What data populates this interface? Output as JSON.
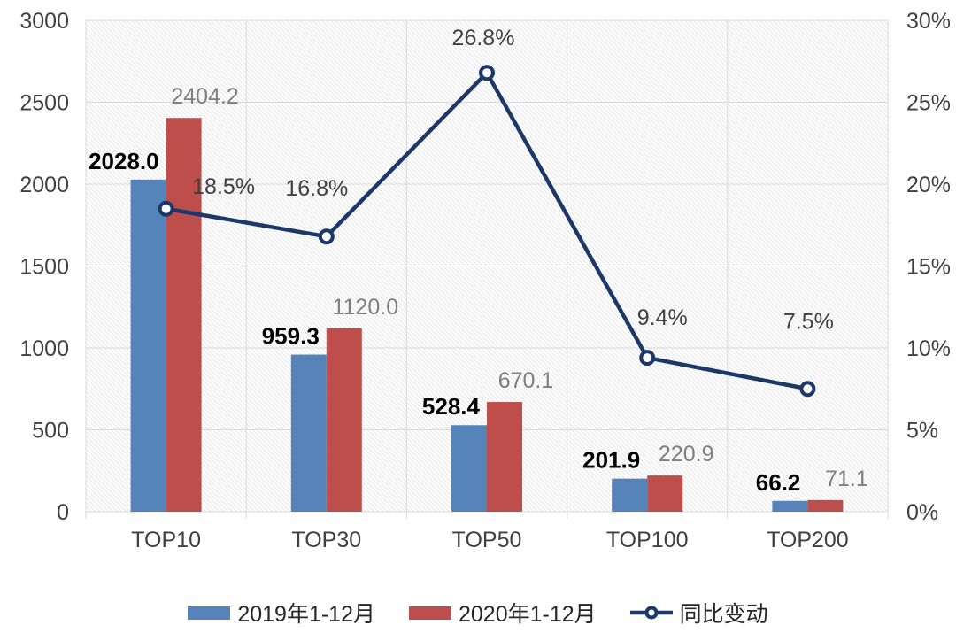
{
  "chart_data": {
    "type": "combo-bar-line",
    "categories": [
      "TOP10",
      "TOP30",
      "TOP50",
      "TOP100",
      "TOP200"
    ],
    "bar_series": [
      {
        "name": "2019年1-12月",
        "color": "#5583BA",
        "values": [
          2028.0,
          959.3,
          528.4,
          201.9,
          66.2
        ],
        "labels": [
          "2028.0",
          "959.3",
          "528.4",
          "201.9",
          "66.2"
        ]
      },
      {
        "name": "2020年1-12月",
        "color": "#BE4E4C",
        "values": [
          2404.2,
          1120.0,
          670.1,
          220.9,
          71.1
        ],
        "labels": [
          "2404.2",
          "1120.0",
          "670.1",
          "220.9",
          "71.1"
        ]
      }
    ],
    "line_series": {
      "name": "同比变动",
      "color": "#1B3869",
      "values_pct": [
        18.5,
        16.8,
        26.8,
        9.4,
        7.5
      ],
      "labels": [
        "18.5%",
        "16.8%",
        "26.8%",
        "9.4%",
        "7.5%"
      ]
    },
    "left_axis": {
      "min": 0,
      "max": 3000,
      "step": 500,
      "ticks": [
        "0",
        "500",
        "1000",
        "1500",
        "2000",
        "2500",
        "3000"
      ]
    },
    "right_axis": {
      "min": 0,
      "max": 30,
      "step": 5,
      "ticks": [
        "0%",
        "5%",
        "10%",
        "15%",
        "20%",
        "25%",
        "30%"
      ]
    },
    "grid": true,
    "legend_position": "bottom",
    "plot_background": "diagonal-hatch"
  },
  "theme": {
    "background": "#ffffff",
    "grid_color": "#d9d9d9",
    "hatch_color": "#e7e7e7",
    "axis_text_color": "#404040",
    "value_label_2019_color": "#000000",
    "value_label_2020_color": "#7f7f7f",
    "pct_label_color": "#404040",
    "legend_text_color": "#262626",
    "marker_fill": "#ffffff"
  }
}
